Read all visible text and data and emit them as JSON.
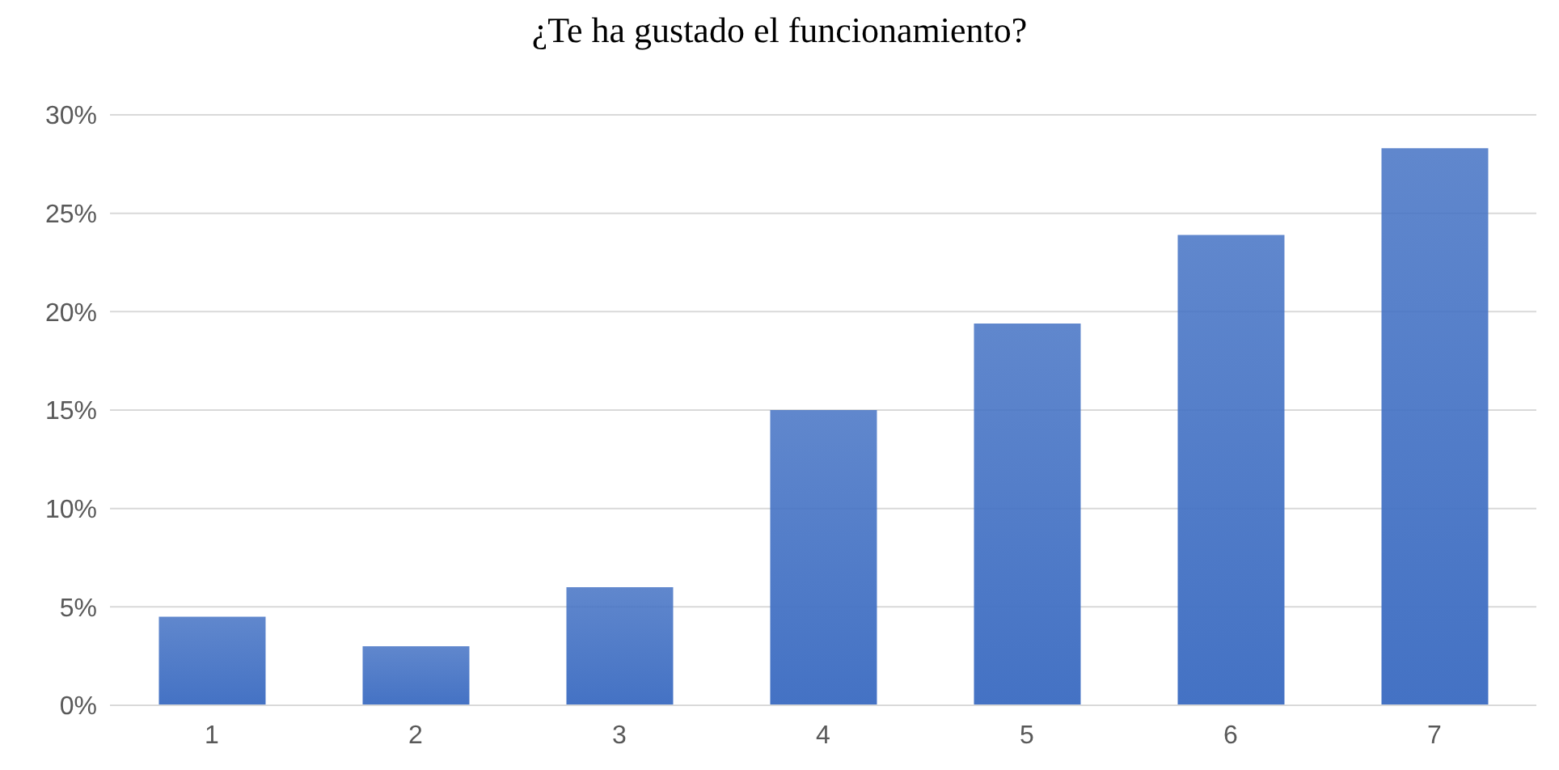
{
  "chart_data": {
    "type": "bar",
    "title": "¿Te ha gustado el funcionamiento?",
    "categories": [
      "1",
      "2",
      "3",
      "4",
      "5",
      "6",
      "7"
    ],
    "values": [
      4.5,
      3.0,
      6.0,
      15.0,
      19.4,
      23.9,
      28.3
    ],
    "color": "#4472c4",
    "ylim": [
      0,
      30
    ],
    "yticks": [
      {
        "value": 0,
        "label": "0%"
      },
      {
        "value": 5,
        "label": "5%"
      },
      {
        "value": 10,
        "label": "10%"
      },
      {
        "value": 15,
        "label": "15%"
      },
      {
        "value": 20,
        "label": "20%"
      },
      {
        "value": 25,
        "label": "25%"
      },
      {
        "value": 30,
        "label": "30%"
      }
    ],
    "grid": "y",
    "legend": false
  }
}
